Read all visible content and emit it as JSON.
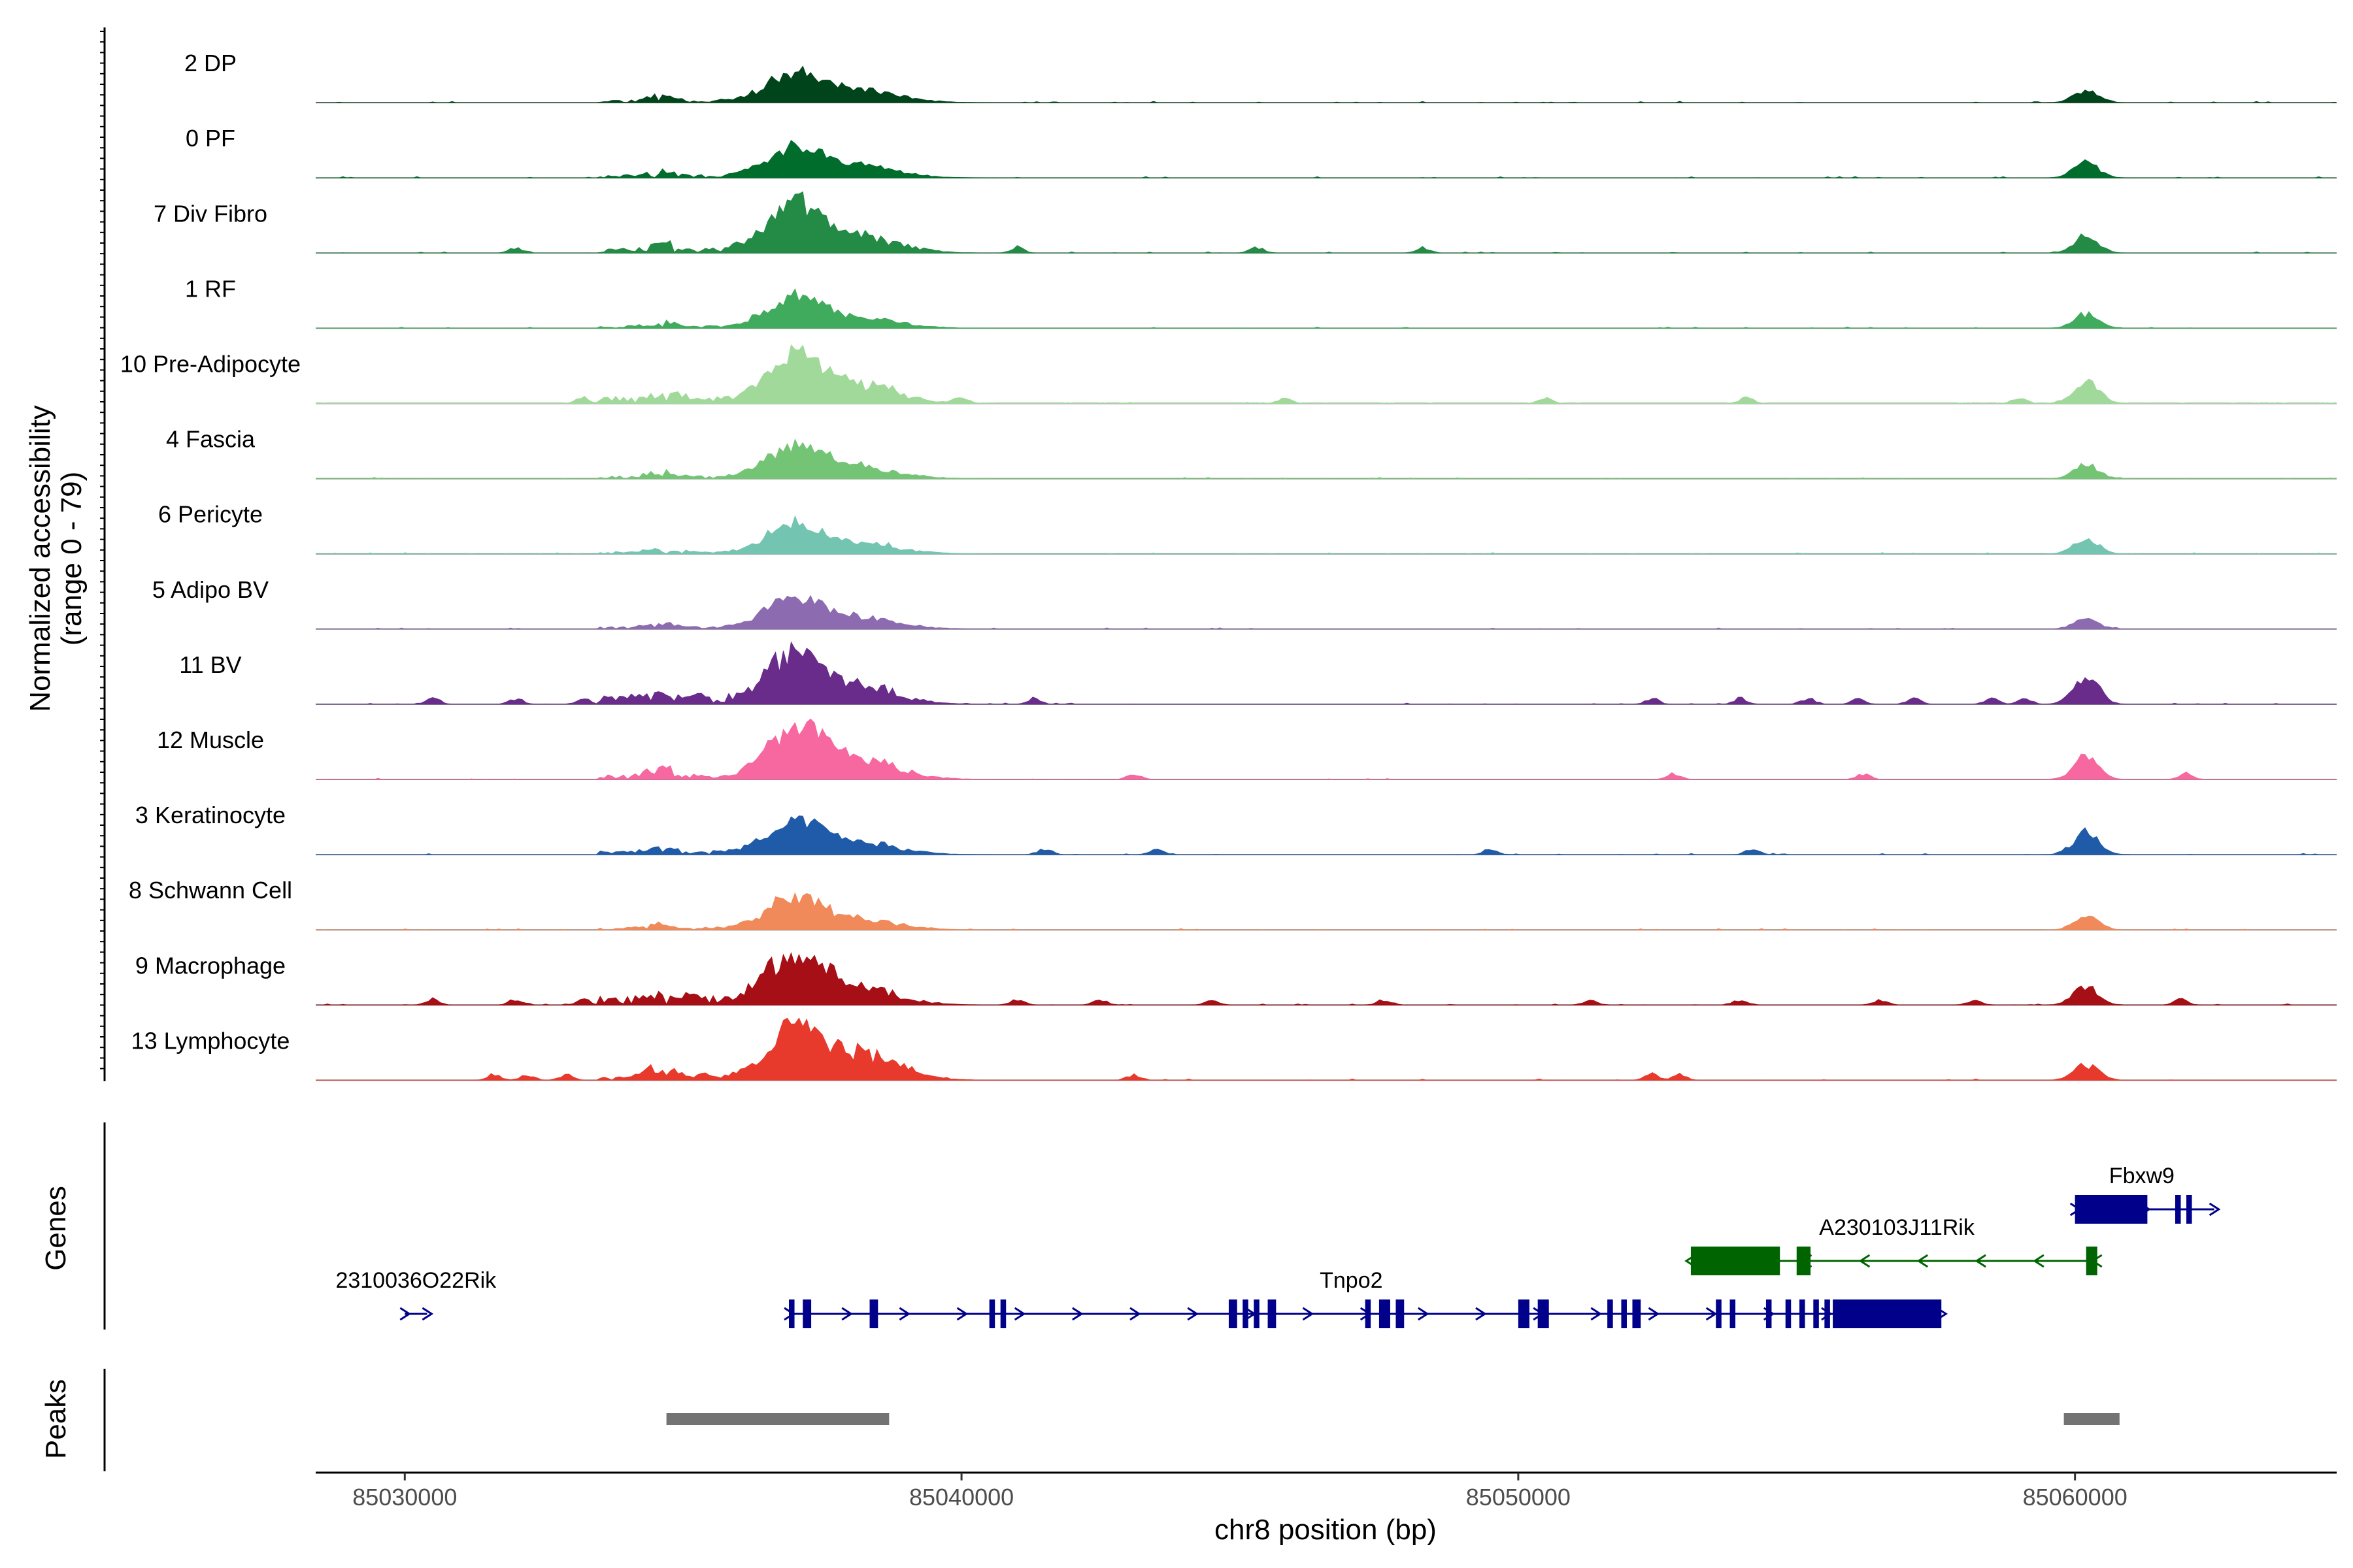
{
  "chart_data": {
    "type": "coverage-track",
    "chromosome": "chr8",
    "xlabel": "chr8 position (bp)",
    "xlim": [
      85028400,
      85064700
    ],
    "xticks": [
      85030000,
      85040000,
      85050000,
      85060000
    ],
    "ylabel_line1": "Normalized accessibility",
    "ylabel_line2": "(range 0 - 79)",
    "ylim": [
      0,
      79
    ],
    "panel_labels": {
      "genes": "Genes",
      "peaks": "Peaks"
    },
    "peak_centers": [
      85036800,
      85060200
    ],
    "tracks": [
      {
        "name": "2 DP",
        "color": "#00441b",
        "main": 0.55,
        "second": 0.22,
        "right": 0.25,
        "noise": 0.04,
        "blips": []
      },
      {
        "name": "0 PF",
        "color": "#006d2c",
        "main": 0.62,
        "second": 0.2,
        "right": 0.3,
        "noise": 0.05,
        "blips": []
      },
      {
        "name": "7 Div Fibro",
        "color": "#238b45",
        "main": 0.95,
        "second": 0.3,
        "right": 0.35,
        "noise": 0.08,
        "blips": [
          85032000,
          85041000,
          85045300,
          85048300
        ]
      },
      {
        "name": "1 RF",
        "color": "#41ab5d",
        "main": 0.58,
        "second": 0.18,
        "right": 0.28,
        "noise": 0.04,
        "blips": []
      },
      {
        "name": "10 Pre-Adipocyte",
        "color": "#a1d99b",
        "main": 0.9,
        "second": 0.3,
        "right": 0.48,
        "noise": 0.12,
        "blips": [
          85033200,
          85035000,
          85040000,
          85045800,
          85050500,
          85054100,
          85059000
        ]
      },
      {
        "name": "4 Fascia",
        "color": "#74c476",
        "main": 0.65,
        "second": 0.2,
        "right": 0.28,
        "noise": 0.05,
        "blips": []
      },
      {
        "name": "6 Pericyte",
        "color": "#74c4b2",
        "main": 0.55,
        "second": 0.18,
        "right": 0.3,
        "noise": 0.04,
        "blips": []
      },
      {
        "name": "5 Adipo BV",
        "color": "#8c6bb1",
        "main": 0.62,
        "second": 0.2,
        "right": 0.2,
        "noise": 0.04,
        "blips": []
      },
      {
        "name": "11 BV",
        "color": "#6a2c8b",
        "main": 0.95,
        "second": 0.3,
        "right": 0.55,
        "noise": 0.12,
        "blips": [
          85030500,
          85032000,
          85033200,
          85034200,
          85035300,
          85041300,
          85052400,
          85054000,
          85055200,
          85056100,
          85057100,
          85058500,
          85059100
        ]
      },
      {
        "name": "12 Muscle",
        "color": "#f768a1",
        "main": 1.0,
        "second": 0.35,
        "right": 0.45,
        "noise": 0.08,
        "blips": [
          85043100,
          85052800,
          85056200,
          85062000
        ]
      },
      {
        "name": "3 Keratinocyte",
        "color": "#1f5ba8",
        "main": 0.62,
        "second": 0.22,
        "right": 0.45,
        "noise": 0.06,
        "blips": [
          85041500,
          85043500,
          85049500,
          85054200
        ]
      },
      {
        "name": "8 Schwann Cell",
        "color": "#f08a5b",
        "main": 0.62,
        "second": 0.18,
        "right": 0.25,
        "noise": 0.04,
        "blips": []
      },
      {
        "name": "9 Macrophage",
        "color": "#a50f15",
        "main": 0.95,
        "second": 0.3,
        "right": 0.38,
        "noise": 0.14,
        "blips": [
          85030500,
          85032000,
          85033200,
          85035200,
          85041000,
          85042500,
          85044500,
          85047600,
          85051300,
          85054000,
          85056500,
          85058200,
          85061900
        ]
      },
      {
        "name": "13 Lymphocyte",
        "color": "#e8392d",
        "main": 1.0,
        "second": 0.5,
        "right": 0.3,
        "noise": 0.05,
        "blips": [
          85031600,
          85032200,
          85032900,
          85034400,
          85035400,
          85043100,
          85052400,
          85052900
        ]
      }
    ],
    "genes": [
      {
        "name": "2310036O22Rik",
        "strand": "+",
        "start": 85030000,
        "end": 85030400,
        "row": 0,
        "color": "#00008b",
        "exons": [],
        "cds": [],
        "label_x": 85030200
      },
      {
        "name": "Tnpo2",
        "strand": "+",
        "start": 85036900,
        "end": 85057600,
        "row": 0,
        "color": "#00008b",
        "exons": [
          [
            85036900,
            85037000
          ],
          [
            85037150,
            85037300
          ],
          [
            85038350,
            85038500
          ],
          [
            85040500,
            85040600
          ],
          [
            85040700,
            85040800
          ],
          [
            85044800,
            85044950
          ],
          [
            85045050,
            85045150
          ],
          [
            85045250,
            85045350
          ],
          [
            85045500,
            85045650
          ],
          [
            85047250,
            85047350
          ],
          [
            85047500,
            85047700
          ],
          [
            85047800,
            85047950
          ],
          [
            85050000,
            85050200
          ],
          [
            85050350,
            85050550
          ],
          [
            85051600,
            85051700
          ],
          [
            85051850,
            85051950
          ],
          [
            85052050,
            85052200
          ],
          [
            85053550,
            85053650
          ],
          [
            85053800,
            85053900
          ],
          [
            85054450,
            85054550
          ],
          [
            85054800,
            85054900
          ],
          [
            85055050,
            85055150
          ],
          [
            85055300,
            85055400
          ],
          [
            85055500,
            85055600
          ]
        ],
        "cds": [
          [
            85055650,
            85057600
          ]
        ],
        "label_x": 85047000
      },
      {
        "name": "A230103J11Rik",
        "strand": "-",
        "start": 85053100,
        "end": 85060400,
        "row": 1,
        "color": "#006400",
        "exons": [
          [
            85055000,
            85055250
          ],
          [
            85060200,
            85060400
          ]
        ],
        "cds": [
          [
            85053100,
            85054700
          ]
        ],
        "label_x": 85056800
      },
      {
        "name": "Fbxw9",
        "strand": "+",
        "start": 85060000,
        "end": 85062500,
        "row": 2,
        "color": "#00008b",
        "exons": [
          [
            85061800,
            85061900
          ],
          [
            85062000,
            85062100
          ]
        ],
        "cds": [
          [
            85060000,
            85061300
          ]
        ],
        "label_x": 85061200
      }
    ],
    "peaks": [
      [
        85034700,
        85038700
      ],
      [
        85059800,
        85060800
      ]
    ]
  }
}
